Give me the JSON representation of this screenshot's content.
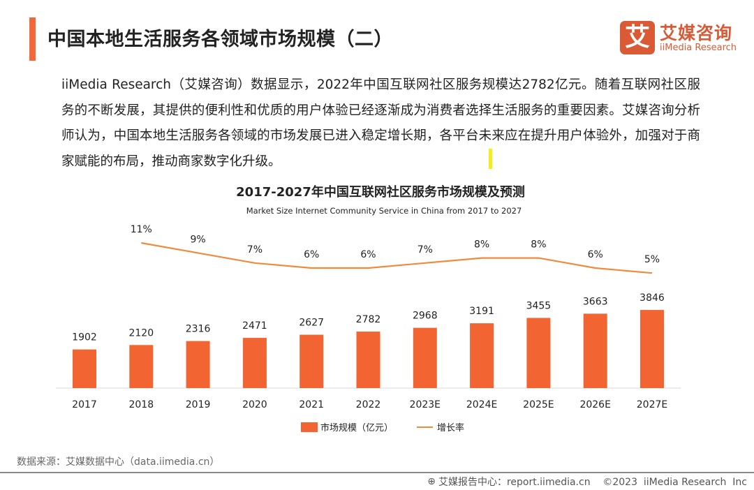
{
  "header": {
    "title": "中国本地生活服务各领域市场规模（二）",
    "accent_color": "#f0693a"
  },
  "logo": {
    "mark": "艾",
    "cn": "艾媒咨询",
    "en": "iiMedia Research"
  },
  "paragraph": "iiMedia Research（艾媒咨询）数据显示，2022年中国互联网社区服务规模达2782亿元。随着互联网社区服务的不断发展，其提供的便利性和优质的用户体验已经逐渐成为消费者选择生活服务的重要因素。艾媒咨询分析师认为，中国本地生活服务各领域的市场发展已进入稳定增长期，各平台未来应在提升用户体验外，加强对于商家赋能的布局，推动商家数字化升级。",
  "chart_data": {
    "type": "bar+line",
    "title": "2017-2027年中国互联网社区服务市场规模及预测",
    "subtitle": "Market  Size  Internet Community Service  in China from 2017 to 2027",
    "categories": [
      "2017",
      "2018",
      "2019",
      "2020",
      "2021",
      "2022",
      "2023E",
      "2024E",
      "2025E",
      "2026E",
      "2027E"
    ],
    "series": [
      {
        "name": "市场规模（亿元）",
        "type": "bar",
        "color": "#f26431",
        "values": [
          1902,
          2120,
          2316,
          2471,
          2627,
          2782,
          2968,
          3191,
          3455,
          3663,
          3846
        ]
      },
      {
        "name": "增长率",
        "type": "line",
        "color": "#f08a3c",
        "values": [
          null,
          11,
          9,
          7,
          6,
          6,
          7,
          8,
          8,
          6,
          5
        ],
        "labels": [
          "",
          "11%",
          "9%",
          "7%",
          "6%",
          "6%",
          "7%",
          "8%",
          "8%",
          "6%",
          "5%"
        ]
      }
    ],
    "legend_position": "bottom",
    "grid": false
  },
  "source": "数据来源：艾媒数据中心（data.iimedia.cn）",
  "footer": {
    "text": "艾媒报告中心：report.iimedia.cn    ©2023  iiMedia Research  Inc"
  }
}
